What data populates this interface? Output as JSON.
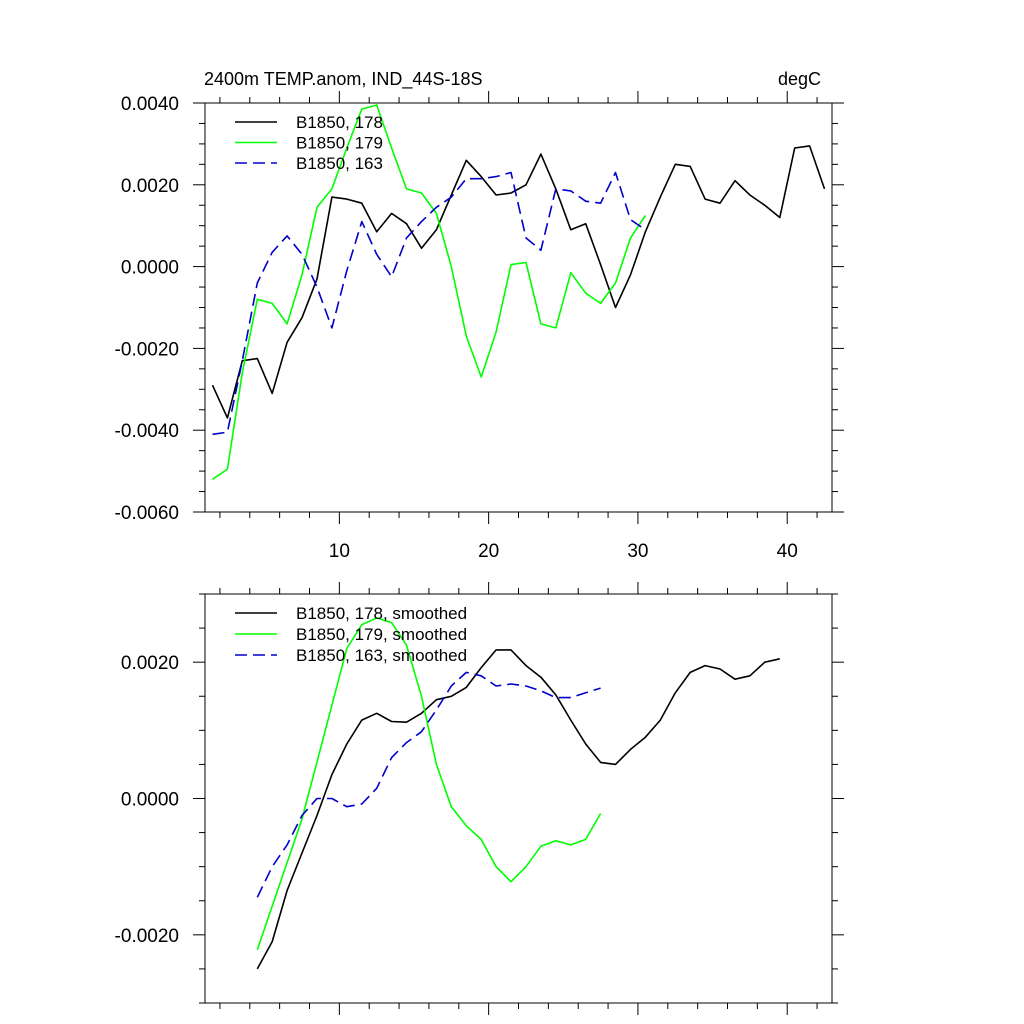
{
  "chart_data": [
    {
      "type": "line",
      "title": "2400m TEMP.anom, IND_44S-18S",
      "units": "degC",
      "xlim": [
        1,
        43
      ],
      "ylim": [
        -0.006,
        0.004
      ],
      "x_ticks": [
        10,
        20,
        30,
        40
      ],
      "x_tick_labels": [
        "10",
        "20",
        "30",
        "40"
      ],
      "y_ticks": [
        -0.006,
        -0.004,
        -0.002,
        0.0,
        0.002,
        0.004
      ],
      "y_tick_labels": [
        "-0.0060",
        "-0.0040",
        "-0.0020",
        "0.0000",
        "0.0020",
        "0.0040"
      ],
      "legend_position": "top-left",
      "series": [
        {
          "name": "B1850, 178",
          "color": "#000000",
          "dash": "solid",
          "x": [
            1.5,
            2.5,
            3.5,
            4.5,
            5.5,
            6.5,
            7.5,
            8.5,
            9.5,
            10.5,
            11.5,
            12.5,
            13.5,
            14.5,
            15.5,
            16.5,
            17.5,
            18.5,
            19.5,
            20.5,
            21.5,
            22.5,
            23.5,
            24.5,
            25.5,
            26.5,
            27.5,
            28.5,
            29.5,
            30.5,
            31.5,
            32.5,
            33.5,
            34.5,
            35.5,
            36.5,
            37.5,
            38.5,
            39.5,
            40.5,
            41.5,
            42.5
          ],
          "y": [
            -0.0029,
            -0.0037,
            -0.0023,
            -0.00225,
            -0.0031,
            -0.00185,
            -0.00125,
            -0.0003,
            0.0017,
            0.00165,
            0.00155,
            0.00085,
            0.0013,
            0.00105,
            0.00045,
            0.0009,
            0.00175,
            0.0026,
            0.0022,
            0.00175,
            0.0018,
            0.002,
            0.00275,
            0.0019,
            0.0009,
            0.00105,
            5e-05,
            -0.001,
            -0.0002,
            0.00085,
            0.0017,
            0.0025,
            0.00245,
            0.00165,
            0.00155,
            0.0021,
            0.00175,
            0.0015,
            0.0012,
            0.0029,
            0.00295,
            0.0019
          ]
        },
        {
          "name": "B1850, 179",
          "color": "#00ff00",
          "dash": "solid",
          "x": [
            1.5,
            2.5,
            3.5,
            4.5,
            5.5,
            6.5,
            7.5,
            8.5,
            9.5,
            10.5,
            11.5,
            12.5,
            13.5,
            14.5,
            15.5,
            16.5,
            17.5,
            18.5,
            19.5,
            20.5,
            21.5,
            22.5,
            23.5,
            24.5,
            25.5,
            26.5,
            27.5,
            28.5,
            29.5,
            30.5
          ],
          "y": [
            -0.0052,
            -0.00495,
            -0.0026,
            -0.0008,
            -0.0009,
            -0.0014,
            -0.0002,
            0.00145,
            0.0019,
            0.0029,
            0.00385,
            0.00395,
            0.0029,
            0.0019,
            0.0018,
            0.0013,
            0.0,
            -0.0017,
            -0.0027,
            -0.0016,
            5e-05,
            0.0001,
            -0.0014,
            -0.0015,
            -0.00015,
            -0.00065,
            -0.0009,
            -0.0004,
            0.0007,
            0.00125
          ]
        },
        {
          "name": "B1850, 163",
          "color": "#0000cc",
          "dash": "dashed",
          "x": [
            1.5,
            2.5,
            3.5,
            4.5,
            5.5,
            6.5,
            7.5,
            8.5,
            9.5,
            10.5,
            11.5,
            12.5,
            13.5,
            14.5,
            15.5,
            16.5,
            17.5,
            18.5,
            19.5,
            20.5,
            21.5,
            22.5,
            23.5,
            24.5,
            25.5,
            26.5,
            27.5,
            28.5,
            29.5,
            30.5
          ],
          "y": [
            -0.0041,
            -0.00405,
            -0.0023,
            -0.0004,
            0.00035,
            0.00075,
            0.0003,
            -0.0005,
            -0.0015,
            -0.0001,
            0.0011,
            0.0003,
            -0.00025,
            0.0007,
            0.0011,
            0.00145,
            0.0017,
            0.00215,
            0.00215,
            0.0022,
            0.0023,
            0.0007,
            0.0004,
            0.0019,
            0.00185,
            0.0016,
            0.00155,
            0.0023,
            0.00115,
            0.0009
          ]
        }
      ]
    },
    {
      "type": "line",
      "title": "",
      "xlim": [
        1,
        43
      ],
      "ylim": [
        -0.003,
        0.003
      ],
      "x_ticks": [
        10,
        20,
        30,
        40
      ],
      "x_tick_labels": [],
      "y_ticks": [
        -0.002,
        0.0,
        0.002
      ],
      "y_tick_labels": [
        "-0.0020",
        "0.0000",
        "0.0020"
      ],
      "legend_position": "top-left",
      "series": [
        {
          "name": "B1850, 178, smoothed",
          "color": "#000000",
          "dash": "solid",
          "x": [
            4.5,
            5.5,
            6.5,
            7.5,
            8.5,
            9.5,
            10.5,
            11.5,
            12.5,
            13.5,
            14.5,
            15.5,
            16.5,
            17.5,
            18.5,
            19.5,
            20.5,
            21.5,
            22.5,
            23.5,
            24.5,
            25.5,
            26.5,
            27.5,
            28.5,
            29.5,
            30.5,
            31.5,
            32.5,
            33.5,
            34.5,
            35.5,
            36.5,
            37.5,
            38.5,
            39.5
          ],
          "y": [
            -0.0025,
            -0.0021,
            -0.00135,
            -0.0008,
            -0.00025,
            0.00035,
            0.0008,
            0.00115,
            0.00125,
            0.00113,
            0.00112,
            0.00125,
            0.00145,
            0.0015,
            0.00163,
            0.00192,
            0.00218,
            0.00218,
            0.00195,
            0.00178,
            0.00152,
            0.00115,
            0.0008,
            0.00053,
            0.0005,
            0.00072,
            0.0009,
            0.00115,
            0.00155,
            0.00185,
            0.00195,
            0.0019,
            0.00175,
            0.0018,
            0.002,
            0.00205
          ]
        },
        {
          "name": "B1850, 179, smoothed",
          "color": "#00ff00",
          "dash": "solid",
          "x": [
            4.5,
            7.5,
            10.5,
            11.5,
            12.5,
            13.5,
            14.5,
            15.5,
            16.5,
            17.5,
            18.5,
            19.5,
            20.5,
            21.5,
            22.5,
            23.5,
            24.5,
            25.5,
            26.5,
            27.5
          ],
          "y": [
            -0.00222,
            -0.0003,
            0.0022,
            0.00255,
            0.00265,
            0.00258,
            0.00225,
            0.0015,
            0.0005,
            -0.00012,
            -0.0004,
            -0.0006,
            -0.001,
            -0.00122,
            -0.001,
            -0.0007,
            -0.00062,
            -0.00068,
            -0.0006,
            -0.00022
          ]
        },
        {
          "name": "B1850, 163, smoothed",
          "color": "#0000cc",
          "dash": "dashed",
          "x": [
            4.5,
            5.5,
            6.5,
            7.5,
            8.5,
            9.5,
            10.5,
            11.5,
            12.5,
            13.5,
            14.5,
            15.5,
            16.5,
            17.5,
            18.5,
            19.5,
            20.5,
            21.5,
            22.5,
            23.5,
            24.5,
            25.5,
            26.5,
            27.5
          ],
          "y": [
            -0.00145,
            -0.001,
            -0.00068,
            -0.00025,
            0.0,
            0.0,
            -0.00012,
            -8e-05,
            0.00015,
            0.0006,
            0.00082,
            0.00098,
            0.0013,
            0.00165,
            0.00185,
            0.0018,
            0.00165,
            0.00168,
            0.00165,
            0.00158,
            0.00148,
            0.00148,
            0.00155,
            0.00162
          ]
        }
      ]
    }
  ]
}
